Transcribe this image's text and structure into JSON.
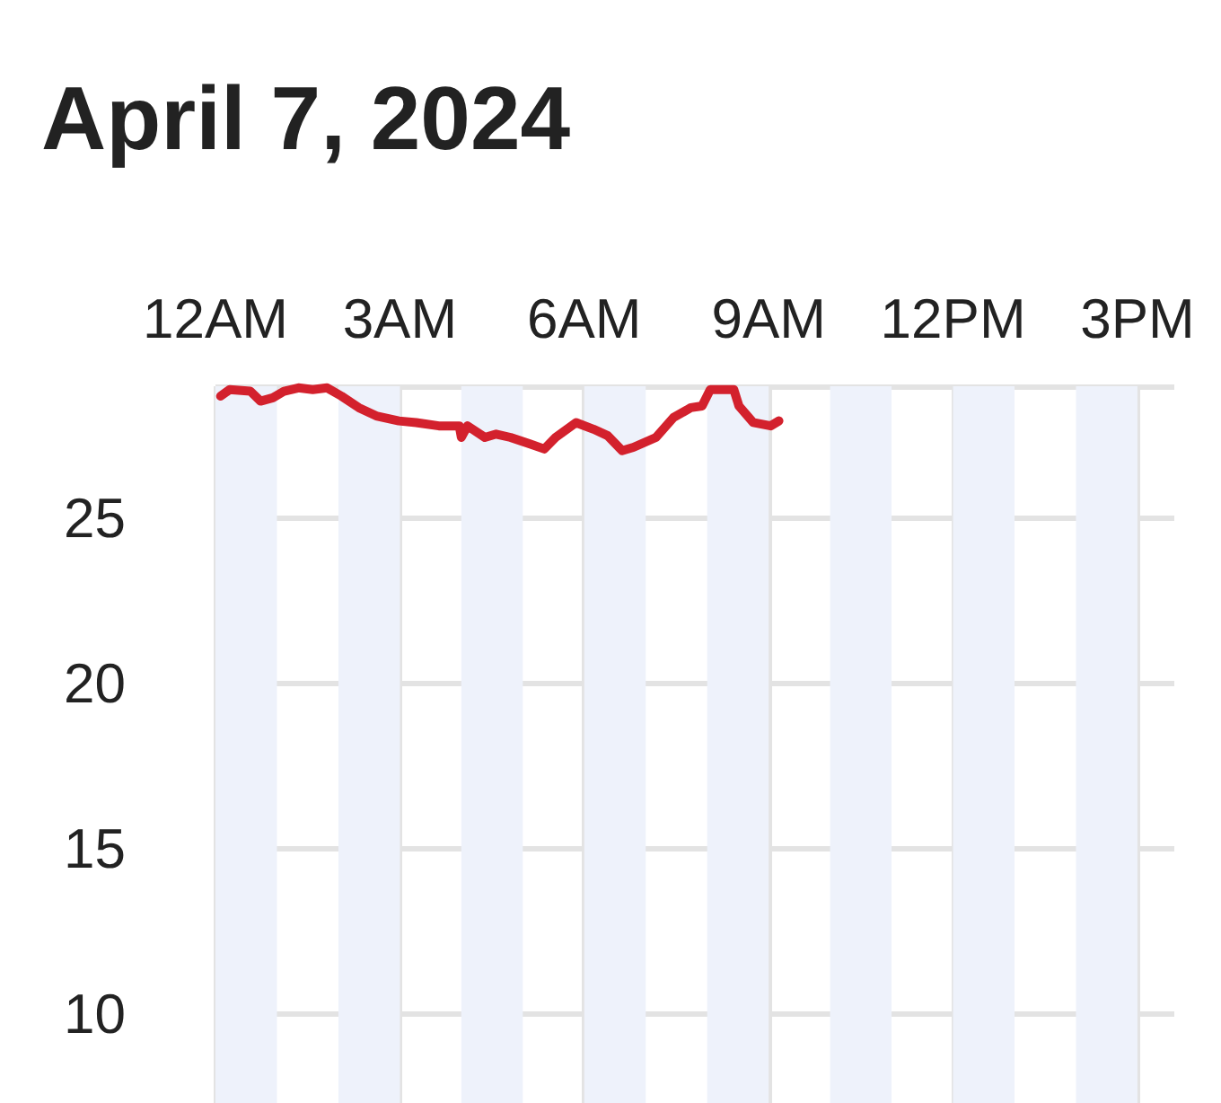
{
  "chart_data": {
    "type": "line",
    "title": "April 7, 2024",
    "x": [
      "2024-04-07T00:05",
      "2024-04-07T00:14",
      "2024-04-07T00:34",
      "2024-04-07T00:44",
      "2024-04-07T00:56",
      "2024-04-07T01:07",
      "2024-04-07T01:21",
      "2024-04-07T01:35",
      "2024-04-07T01:49",
      "2024-04-07T02:03",
      "2024-04-07T02:20",
      "2024-04-07T02:37",
      "2024-04-07T02:59",
      "2024-04-07T03:16",
      "2024-04-07T03:38",
      "2024-04-07T03:58",
      "2024-04-07T04:00",
      "2024-04-07T04:06",
      "2024-04-07T04:23",
      "2024-04-07T04:34",
      "2024-04-07T04:48",
      "2024-04-07T05:07",
      "2024-04-07T05:21",
      "2024-04-07T05:32",
      "2024-04-07T05:52",
      "2024-04-07T06:09",
      "2024-04-07T06:23",
      "2024-04-07T06:37",
      "2024-04-07T06:48",
      "2024-04-07T07:10",
      "2024-04-07T07:27",
      "2024-04-07T07:44",
      "2024-04-07T07:55",
      "2024-04-07T08:03",
      "2024-04-07T08:26",
      "2024-04-07T08:31",
      "2024-04-07T08:45",
      "2024-04-07T09:02",
      "2024-04-07T09:10"
    ],
    "series": [
      {
        "color": "#d3212d",
        "values": [
          28.7,
          28.9,
          28.85,
          28.55,
          28.65,
          28.85,
          28.95,
          28.9,
          28.95,
          28.7,
          28.35,
          28.1,
          27.95,
          27.9,
          27.8,
          27.8,
          27.45,
          27.8,
          27.45,
          27.55,
          27.45,
          27.25,
          27.1,
          27.45,
          27.9,
          27.7,
          27.5,
          27.05,
          27.15,
          27.45,
          28.05,
          28.35,
          28.4,
          28.9,
          28.9,
          28.4,
          27.9,
          27.8,
          27.95
        ]
      }
    ],
    "xlim": [
      "2024-04-07T00:00",
      "2024-04-07T15:36"
    ],
    "xticks": [
      {
        "value": "2024-04-07T00:00",
        "label": "12AM"
      },
      {
        "value": "2024-04-07T03:00",
        "label": "3AM"
      },
      {
        "value": "2024-04-07T06:00",
        "label": "6AM"
      },
      {
        "value": "2024-04-07T09:00",
        "label": "9AM"
      },
      {
        "value": "2024-04-07T12:00",
        "label": "12PM"
      },
      {
        "value": "2024-04-07T15:00",
        "label": "3PM"
      }
    ],
    "ylim": [
      7.3,
      29
    ],
    "yticks": [
      10,
      15,
      20,
      25,
      {
        "value": 29,
        "label": null
      }
    ],
    "grid": true,
    "marker": "none",
    "line_style": "solid",
    "bands": [
      {
        "axis": "x",
        "from": "2024-04-07T00:00",
        "to": "2024-04-07T01:00",
        "color": "#eef2fb"
      },
      {
        "axis": "x",
        "from": "2024-04-07T02:00",
        "to": "2024-04-07T03:00",
        "color": "#eef2fb"
      },
      {
        "axis": "x",
        "from": "2024-04-07T04:00",
        "to": "2024-04-07T05:00",
        "color": "#eef2fb"
      },
      {
        "axis": "x",
        "from": "2024-04-07T06:00",
        "to": "2024-04-07T07:00",
        "color": "#eef2fb"
      },
      {
        "axis": "x",
        "from": "2024-04-07T08:00",
        "to": "2024-04-07T09:00",
        "color": "#eef2fb"
      },
      {
        "axis": "x",
        "from": "2024-04-07T10:00",
        "to": "2024-04-07T11:00",
        "color": "#eef2fb"
      },
      {
        "axis": "x",
        "from": "2024-04-07T12:00",
        "to": "2024-04-07T13:00",
        "color": "#eef2fb"
      },
      {
        "axis": "x",
        "from": "2024-04-07T14:00",
        "to": "2024-04-07T15:00",
        "color": "#eef2fb"
      }
    ]
  }
}
